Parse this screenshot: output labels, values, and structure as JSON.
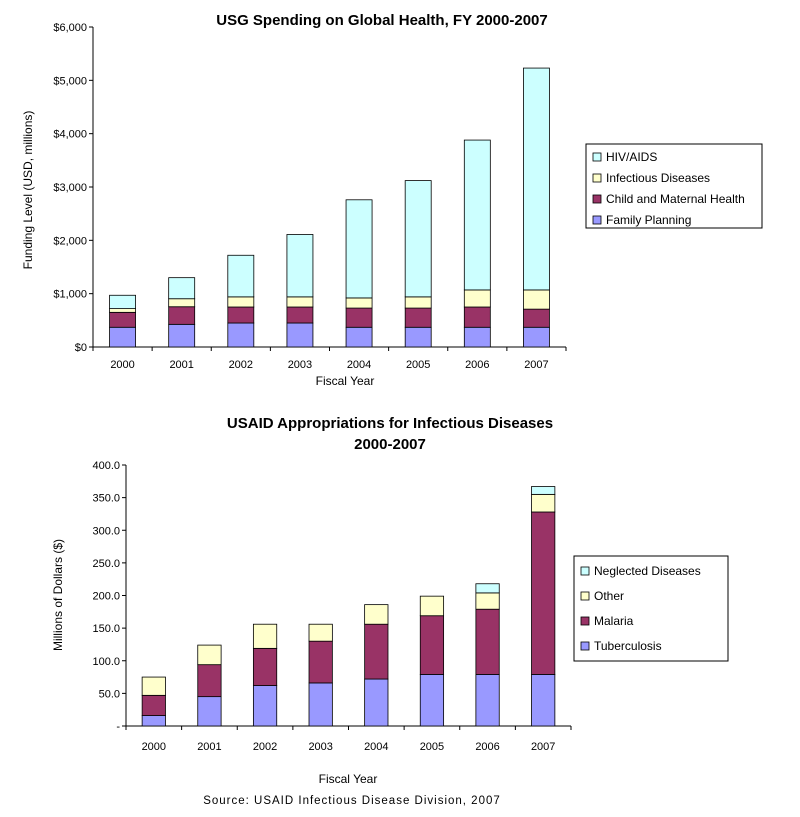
{
  "colors": {
    "hiv_aids": "#CCFFFF",
    "infectious": "#FFFFCC",
    "child_maternal": "#993366",
    "family_planning": "#9999FF",
    "neglected": "#CCFFFF",
    "other": "#FFFFCC",
    "malaria": "#993366",
    "tuberculosis": "#9999FF"
  },
  "source_note": "Source: USAID Infectious Disease Division, 2007",
  "chart_data": [
    {
      "type": "bar",
      "stacked": true,
      "title": "USG Spending on Global Health, FY 2000-2007",
      "xlabel": "Fiscal Year",
      "ylabel": "Funding Level (USD, millions)",
      "ylim": [
        0,
        6000
      ],
      "yticks": [
        "$0",
        "$1,000",
        "$2,000",
        "$3,000",
        "$4,000",
        "$5,000",
        "$6,000"
      ],
      "categories": [
        "2000",
        "2001",
        "2002",
        "2003",
        "2004",
        "2005",
        "2006",
        "2007"
      ],
      "series": [
        {
          "name": "Family Planning",
          "values": [
            370,
            425,
            450,
            450,
            370,
            370,
            370,
            370
          ]
        },
        {
          "name": "Child and Maternal Health",
          "values": [
            280,
            330,
            300,
            300,
            360,
            360,
            380,
            340
          ]
        },
        {
          "name": "Infectious Diseases",
          "values": [
            70,
            150,
            190,
            190,
            190,
            210,
            320,
            360
          ]
        },
        {
          "name": "HIV/AIDS",
          "values": [
            250,
            395,
            780,
            1170,
            1840,
            2180,
            2810,
            4160
          ]
        }
      ],
      "legend": [
        "HIV/AIDS",
        "Infectious Diseases",
        "Child and Maternal Health",
        "Family Planning"
      ],
      "legend_position": "right",
      "grid": false
    },
    {
      "type": "bar",
      "stacked": true,
      "title": "USAID Appropriations for Infectious Diseases",
      "title_line2": "2000-2007",
      "xlabel": "Fiscal Year",
      "ylabel": "Millions of Dollars ($)",
      "ylim": [
        0,
        400
      ],
      "yticks": [
        "-",
        "50.0",
        "100.0",
        "150.0",
        "200.0",
        "250.0",
        "300.0",
        "350.0",
        "400.0"
      ],
      "categories": [
        "2000",
        "2001",
        "2002",
        "2003",
        "2004",
        "2005",
        "2006",
        "2007"
      ],
      "series": [
        {
          "name": "Tuberculosis",
          "values": [
            16,
            45,
            62,
            66,
            72,
            79,
            79,
            79
          ]
        },
        {
          "name": "Malaria",
          "values": [
            31,
            49,
            57,
            64,
            84,
            90,
            100,
            249
          ]
        },
        {
          "name": "Other",
          "values": [
            28,
            30,
            37,
            26,
            30,
            30,
            25,
            27
          ]
        },
        {
          "name": "Neglected Diseases",
          "values": [
            0,
            0,
            0,
            0,
            0,
            0,
            14,
            12
          ]
        }
      ],
      "legend": [
        "Neglected Diseases",
        "Other",
        "Malaria",
        "Tuberculosis"
      ],
      "legend_position": "right",
      "grid": false
    }
  ]
}
